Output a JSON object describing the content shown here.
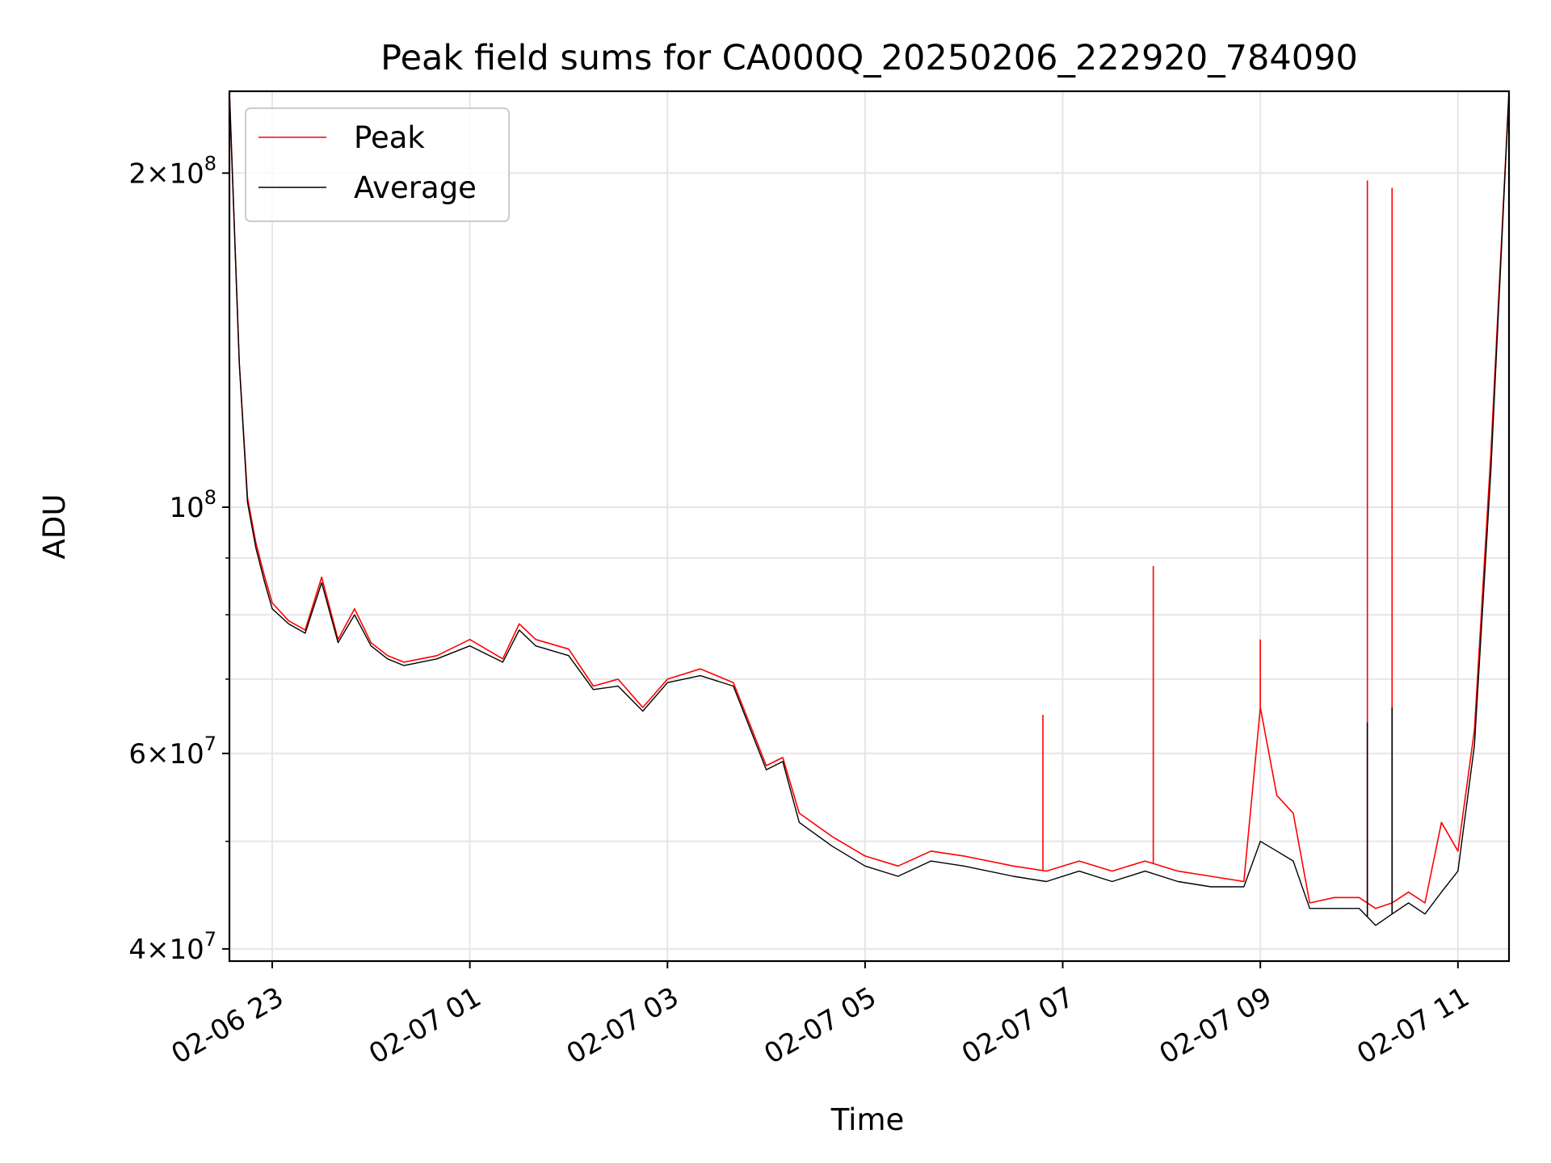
{
  "chart_data": {
    "type": "line",
    "title": "Peak field sums for CA000Q_20250206_222920_784090",
    "xlabel": "Time",
    "ylabel": "ADU",
    "yscale": "log",
    "xlim": [
      "2025-02-06 22:34",
      "2025-02-07 11:31"
    ],
    "ylim": [
      39000000,
      237000000
    ],
    "grid": true,
    "legend_position": "top-left",
    "x_tick_labels": [
      "02-06 23",
      "02-07 01",
      "02-07 03",
      "02-07 05",
      "02-07 07",
      "02-07 09",
      "02-07 11"
    ],
    "x_ticks": [
      "2025-02-06 23:00",
      "2025-02-07 01:00",
      "2025-02-07 03:00",
      "2025-02-07 05:00",
      "2025-02-07 07:00",
      "2025-02-07 09:00",
      "2025-02-07 11:00"
    ],
    "y_ticks": [
      {
        "value": 40000000,
        "mant": "4",
        "exp": "7"
      },
      {
        "value": 60000000,
        "mant": "6",
        "exp": "7"
      },
      {
        "value": 100000000,
        "mant": "",
        "exp": "8"
      },
      {
        "value": 200000000,
        "mant": "2",
        "exp": "8"
      }
    ],
    "y_minor_ticks": [
      50000000,
      70000000,
      80000000,
      90000000
    ],
    "x": [
      "2025-02-06 22:34",
      "2025-02-06 22:40",
      "2025-02-06 22:45",
      "2025-02-06 22:50",
      "2025-02-06 22:55",
      "2025-02-06 23:00",
      "2025-02-06 23:10",
      "2025-02-06 23:20",
      "2025-02-06 23:30",
      "2025-02-06 23:40",
      "2025-02-06 23:50",
      "2025-02-07 00:00",
      "2025-02-07 00:10",
      "2025-02-07 00:20",
      "2025-02-07 00:30",
      "2025-02-07 00:40",
      "2025-02-07 01:00",
      "2025-02-07 01:20",
      "2025-02-07 01:30",
      "2025-02-07 01:40",
      "2025-02-07 02:00",
      "2025-02-07 02:15",
      "2025-02-07 02:30",
      "2025-02-07 02:45",
      "2025-02-07 03:00",
      "2025-02-07 03:20",
      "2025-02-07 03:40",
      "2025-02-07 04:00",
      "2025-02-07 04:10",
      "2025-02-07 04:20",
      "2025-02-07 04:40",
      "2025-02-07 05:00",
      "2025-02-07 05:20",
      "2025-02-07 05:40",
      "2025-02-07 06:00",
      "2025-02-07 06:30",
      "2025-02-07 06:50",
      "2025-02-07 07:10",
      "2025-02-07 07:30",
      "2025-02-07 07:50",
      "2025-02-07 08:10",
      "2025-02-07 08:30",
      "2025-02-07 08:50",
      "2025-02-07 09:00",
      "2025-02-07 09:10",
      "2025-02-07 09:20",
      "2025-02-07 09:30",
      "2025-02-07 09:45",
      "2025-02-07 10:00",
      "2025-02-07 10:10",
      "2025-02-07 10:20",
      "2025-02-07 10:30",
      "2025-02-07 10:40",
      "2025-02-07 10:50",
      "2025-02-07 11:00",
      "2025-02-07 11:10",
      "2025-02-07 11:20",
      "2025-02-07 11:31"
    ],
    "series": [
      {
        "name": "Peak",
        "color": "#ff0000",
        "values": [
          237000000,
          135000000,
          102000000,
          93000000,
          87000000,
          82000000,
          79000000,
          77500000,
          86500000,
          76000000,
          81000000,
          75500000,
          73500000,
          72500000,
          73000000,
          73500000,
          76000000,
          73000000,
          78500000,
          76000000,
          74500000,
          69000000,
          70000000,
          66000000,
          70000000,
          71500000,
          69500000,
          58500000,
          59500000,
          53000000,
          50500000,
          48500000,
          47500000,
          49000000,
          48500000,
          47500000,
          47000000,
          48000000,
          47000000,
          48000000,
          47000000,
          46500000,
          46000000,
          66000000,
          55000000,
          53000000,
          44000000,
          44500000,
          44500000,
          43500000,
          44000000,
          45000000,
          44000000,
          52000000,
          49000000,
          63000000,
          112000000,
          237000000
        ]
      },
      {
        "name": "Average",
        "color": "#000000",
        "values": [
          237000000,
          135000000,
          101000000,
          92000000,
          86000000,
          81000000,
          78500000,
          77000000,
          85500000,
          75500000,
          80000000,
          75000000,
          73000000,
          72000000,
          72500000,
          73000000,
          75000000,
          72500000,
          77500000,
          75000000,
          73500000,
          68500000,
          69000000,
          65500000,
          69500000,
          70500000,
          69000000,
          58000000,
          59000000,
          52000000,
          49500000,
          47500000,
          46500000,
          48000000,
          47500000,
          46500000,
          46000000,
          47000000,
          46000000,
          47000000,
          46000000,
          45500000,
          45500000,
          50000000,
          49000000,
          48000000,
          43500000,
          43500000,
          43500000,
          42000000,
          43000000,
          44000000,
          43000000,
          45000000,
          47000000,
          61000000,
          108000000,
          237000000
        ]
      }
    ],
    "spikes": [
      {
        "series": "Peak",
        "x": "2025-02-07 06:48",
        "value": 65000000
      },
      {
        "series": "Peak",
        "x": "2025-02-07 07:55",
        "value": 88500000
      },
      {
        "series": "Peak",
        "x": "2025-02-07 09:00",
        "value": 76000000
      },
      {
        "series": "Peak",
        "x": "2025-02-07 10:05",
        "value": 197000000
      },
      {
        "series": "Peak",
        "x": "2025-02-07 10:20",
        "value": 194000000
      },
      {
        "series": "Average",
        "x": "2025-02-07 10:05",
        "value": 64000000
      },
      {
        "series": "Average",
        "x": "2025-02-07 10:20",
        "value": 66000000
      }
    ]
  }
}
